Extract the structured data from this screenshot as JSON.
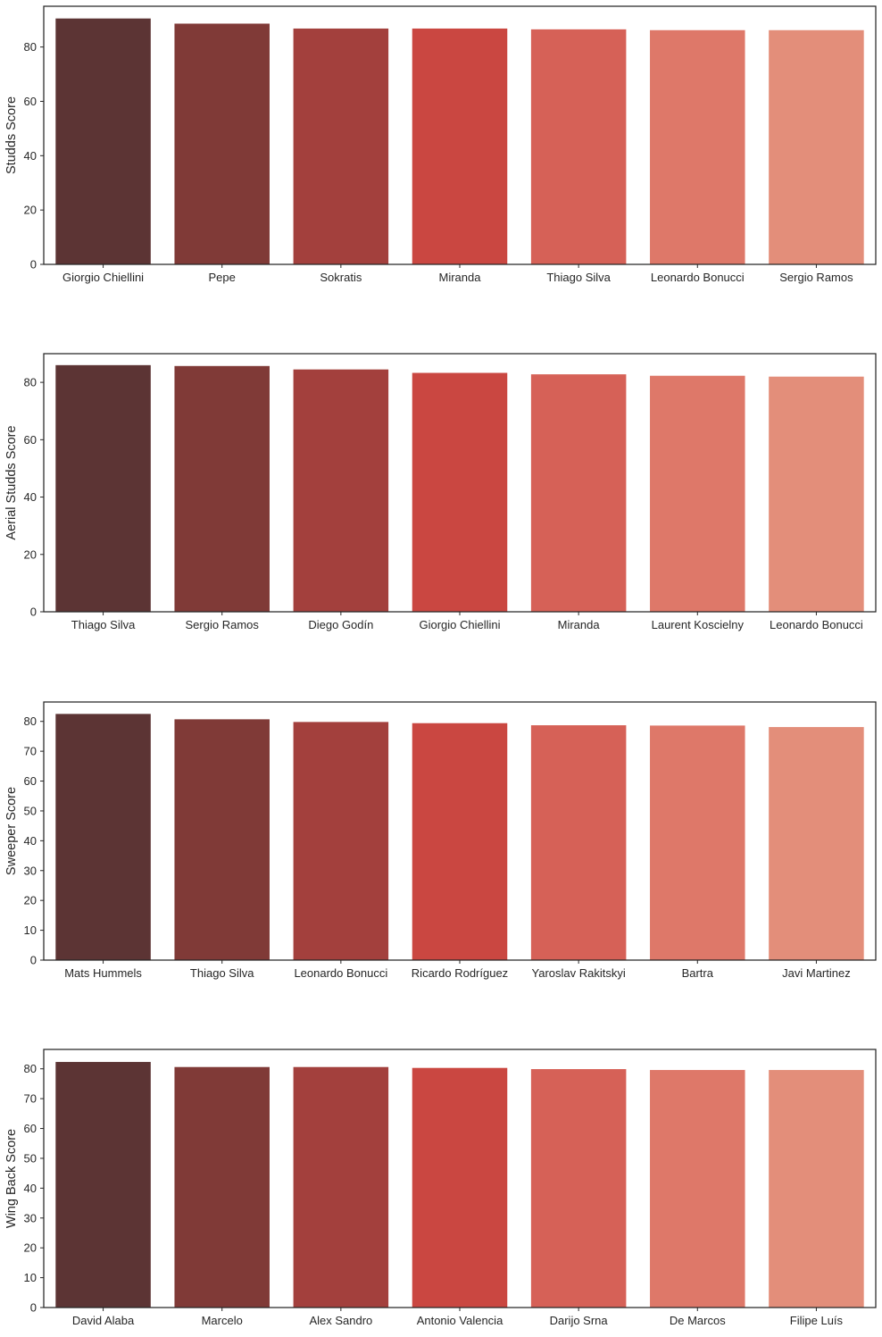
{
  "chart_data": [
    {
      "type": "bar",
      "categories": [
        "Giorgio Chiellini",
        "Pepe",
        "Sokratis",
        "Miranda",
        "Thiago Silva",
        "Leonardo Bonucci",
        "Sergio Ramos"
      ],
      "values": [
        90.5,
        88.6,
        86.8,
        86.8,
        86.5,
        86.2,
        86.2
      ],
      "xlabel": "",
      "ylabel": "Studds Score",
      "ylim": [
        0,
        95
      ],
      "yticks": [
        0,
        20,
        40,
        60,
        80
      ],
      "grid": false
    },
    {
      "type": "bar",
      "categories": [
        "Thiago Silva",
        "Sergio Ramos",
        "Diego Godín",
        "Giorgio Chiellini",
        "Miranda",
        "Laurent Koscielny",
        "Leonardo Bonucci"
      ],
      "values": [
        86.0,
        85.7,
        84.5,
        83.3,
        82.8,
        82.3,
        82.0
      ],
      "xlabel": "",
      "ylabel": "Aerial Studds Score",
      "ylim": [
        0,
        90
      ],
      "yticks": [
        0,
        20,
        40,
        60,
        80
      ],
      "grid": false
    },
    {
      "type": "bar",
      "categories": [
        "Mats Hummels",
        "Thiago Silva",
        "Leonardo Bonucci",
        "Ricardo Rodríguez",
        "Yaroslav Rakitskyi",
        "Bartra",
        "Javi Martinez"
      ],
      "values": [
        82.5,
        80.7,
        79.8,
        79.4,
        78.7,
        78.6,
        78.1
      ],
      "xlabel": "",
      "ylabel": "Sweeper Score",
      "ylim": [
        0,
        86.5
      ],
      "yticks": [
        0,
        10,
        20,
        30,
        40,
        50,
        60,
        70,
        80
      ],
      "grid": false
    },
    {
      "type": "bar",
      "categories": [
        "David Alaba",
        "Marcelo",
        "Alex Sandro",
        "Antonio Valencia",
        "Darijo Srna",
        "De Marcos",
        "Filipe Luís"
      ],
      "values": [
        82.3,
        80.6,
        80.6,
        80.3,
        79.9,
        79.6,
        79.6
      ],
      "xlabel": "",
      "ylabel": "Wing Back Score",
      "ylim": [
        0,
        86.5
      ],
      "yticks": [
        0,
        10,
        20,
        30,
        40,
        50,
        60,
        70,
        80
      ],
      "grid": false
    }
  ],
  "palette": [
    "#5c3434",
    "#803a37",
    "#a3403d",
    "#ca4741",
    "#d66157",
    "#de7869",
    "#e38e7a"
  ],
  "axis_color": "#262626",
  "background": "#ffffff"
}
